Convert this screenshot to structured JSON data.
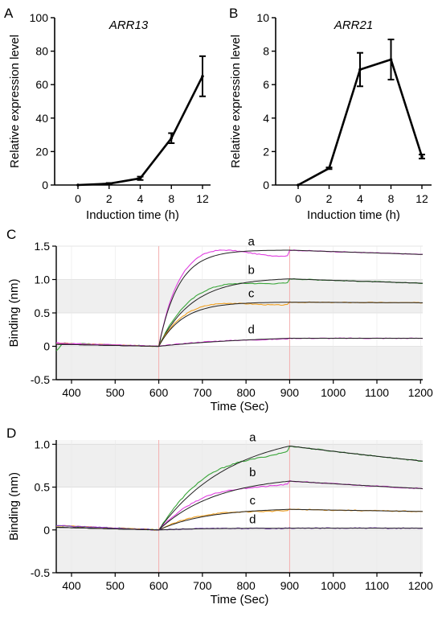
{
  "panels": {
    "A": {
      "letter": "A"
    },
    "B": {
      "letter": "B"
    },
    "C": {
      "letter": "C"
    },
    "D": {
      "letter": "D"
    }
  },
  "colors": {
    "line": "#000000",
    "magenta": "#e040e0",
    "green": "#3aa63a",
    "orange": "#f0a020",
    "purple": "#8040c0",
    "grid_band": "#efefef",
    "phase_marker": "#f4b0b0"
  },
  "chart_data": [
    {
      "id": "A",
      "type": "line",
      "title": "ARR13",
      "xlabel": "Induction time (h)",
      "ylabel": "Relative expression level",
      "categories": [
        "0",
        "2",
        "4",
        "8",
        "12"
      ],
      "yticks": [
        "0",
        "20",
        "40",
        "60",
        "80",
        "100"
      ],
      "ylim": [
        0,
        100
      ],
      "series": [
        {
          "values": [
            0,
            0.8,
            4,
            28,
            65
          ],
          "error": [
            0,
            0.4,
            1,
            3,
            12
          ]
        }
      ]
    },
    {
      "id": "B",
      "type": "line",
      "title": "ARR21",
      "xlabel": "Induction time (h)",
      "ylabel": "Relative expression level",
      "categories": [
        "0",
        "2",
        "4",
        "8",
        "12"
      ],
      "yticks": [
        "0",
        "2",
        "4",
        "6",
        "8",
        "10"
      ],
      "ylim": [
        0,
        10
      ],
      "series": [
        {
          "values": [
            0,
            1,
            6.9,
            7.5,
            1.7
          ],
          "error": [
            0,
            0.05,
            1.0,
            1.2,
            0.12
          ]
        }
      ]
    },
    {
      "id": "C",
      "type": "line",
      "xlabel": "Time (Sec)",
      "ylabel": "Binding (nm)",
      "xlim": [
        365,
        1205
      ],
      "ylim": [
        -0.5,
        1.5
      ],
      "xticks": [
        "400",
        "500",
        "600",
        "700",
        "800",
        "900",
        "1000",
        "1100",
        "1200"
      ],
      "yticks": [
        "-0.5",
        "0",
        "0.5",
        "1.0",
        "1.5"
      ],
      "series": [
        {
          "label": "a",
          "color": "magenta",
          "plateau": 1.44,
          "k_on": 0.022,
          "k_off": 0.00015
        },
        {
          "label": "b",
          "color": "green",
          "plateau": 1.01,
          "k_on": 0.013,
          "k_off": 0.00022
        },
        {
          "label": "c",
          "color": "orange",
          "plateau": 0.66,
          "k_on": 0.018,
          "k_off": 4e-05
        },
        {
          "label": "d",
          "color": "magenta",
          "plateau": 0.12,
          "k_on": 0.004,
          "k_off": 0.0
        }
      ]
    },
    {
      "id": "D",
      "type": "line",
      "xlabel": "Time (Sec)",
      "ylabel": "Binding (nm)",
      "xlim": [
        365,
        1205
      ],
      "ylim": [
        -0.5,
        1.05
      ],
      "xticks": [
        "400",
        "500",
        "600",
        "700",
        "800",
        "900",
        "1000",
        "1100",
        "1200"
      ],
      "yticks": [
        "-0.5",
        "0",
        "0.5",
        "1.0"
      ],
      "series": [
        {
          "label": "a",
          "color": "green",
          "plateau": 0.98,
          "k_on": 0.006,
          "k_off": 0.00065
        },
        {
          "label": "b",
          "color": "magenta",
          "plateau": 0.57,
          "k_on": 0.0075,
          "k_off": 0.00055
        },
        {
          "label": "c",
          "color": "orange",
          "plateau": 0.24,
          "k_on": 0.009,
          "k_off": 0.00035
        },
        {
          "label": "d",
          "color": "purple",
          "plateau": 0.02,
          "k_on": 0.01,
          "k_off": 0.0
        }
      ]
    }
  ]
}
